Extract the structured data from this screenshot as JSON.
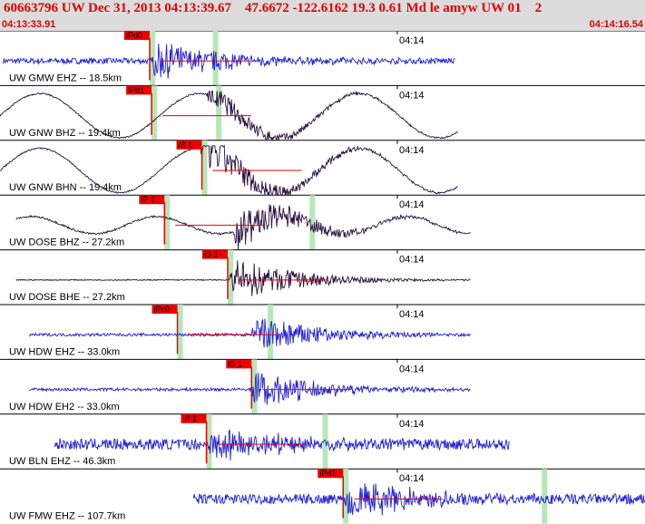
{
  "header": {
    "title": "60663796 UW Dec 31, 2013 04:13:39.67    47.6672 -122.6162 19.3 0.61 Md le amyw UW 01    2",
    "start_time": "04:13:33.91",
    "end_time": "04:14:16.54"
  },
  "colors": {
    "header_bg": "#dcdcdc",
    "header_text": "#e00000",
    "trace_blue": "#1f1fd6",
    "trace_dark": "#2a1040",
    "pick_red": "#ee0000",
    "window_green": "#b8e6b8"
  },
  "traces": [
    {
      "label": "UW GMW EHZ -- 18.5km",
      "time_label": "04:14",
      "pick": "iPd0",
      "pick_pos": 0.232,
      "s_pick_pos": 0.33,
      "start": 0.005,
      "end": 0.705,
      "color": "blue",
      "lowfreq": 0,
      "event": 0.235,
      "amp": 0.4,
      "noise": 0.12
    },
    {
      "label": "UW GNW BHZ -- 19.4km",
      "time_label": "04:14",
      "pick": "iPd1",
      "pick_pos": 0.235,
      "s_pick_pos": 0.335,
      "start": 0.0,
      "end": 0.71,
      "color": "dark",
      "lowfreq": 1,
      "event": 0.32,
      "amp": 0.25,
      "noise": 0.03
    },
    {
      "label": "UW GNW BHN -- 19.4km",
      "time_label": "04:14",
      "pick": "iS 1",
      "pick_pos": 0.313,
      "s_pick_pos": 0.313,
      "start": 0.0,
      "end": 0.71,
      "color": "dark",
      "lowfreq": 1,
      "event": 0.31,
      "amp": 0.45,
      "noise": 0.03
    },
    {
      "label": "UW DOSE BHZ -- 27.2km",
      "time_label": "04:14",
      "pick": "iP 1",
      "pick_pos": 0.255,
      "s_pick_pos": 0.48,
      "start": 0.025,
      "end": 0.73,
      "color": "dark",
      "lowfreq": 2,
      "event": 0.36,
      "amp": 0.45,
      "noise": 0.04
    },
    {
      "label": "UW DOSE BHE -- 27.2km",
      "time_label": "04:14",
      "pick": "iS 1",
      "pick_pos": 0.353,
      "s_pick_pos": 0.353,
      "start": 0.025,
      "end": 0.73,
      "color": "dark",
      "lowfreq": 0,
      "event": 0.355,
      "amp": 0.45,
      "noise": 0.02
    },
    {
      "label": "UW HDW EHZ -- 33.0km",
      "time_label": "04:14",
      "pick": "iPc0",
      "pick_pos": 0.275,
      "s_pick_pos": 0.415,
      "start": 0.045,
      "end": 0.73,
      "color": "blue",
      "lowfreq": 0,
      "event": 0.39,
      "amp": 0.4,
      "noise": 0.06
    },
    {
      "label": "UW HDW EH2 -- 33.0km",
      "time_label": "04:14",
      "pick": "iS 1",
      "pick_pos": 0.39,
      "s_pick_pos": 0.39,
      "start": 0.045,
      "end": 0.73,
      "color": "blue",
      "lowfreq": 0,
      "event": 0.39,
      "amp": 0.4,
      "noise": 0.06
    },
    {
      "label": "UW BLN EHZ -- 46.3km",
      "time_label": "04:14",
      "pick": "iP 1",
      "pick_pos": 0.32,
      "s_pick_pos": 0.5,
      "start": 0.085,
      "end": 0.79,
      "color": "blue",
      "lowfreq": 0,
      "event": 0.323,
      "amp": 0.35,
      "noise": 0.22
    },
    {
      "label": "UW FMW EHZ -- 107.7km",
      "time_label": "04:14",
      "pick": "iPd1",
      "pick_pos": 0.532,
      "s_pick_pos": 0.84,
      "start": 0.3,
      "end": 1.0,
      "color": "blue",
      "lowfreq": 0,
      "event": 0.535,
      "amp": 0.4,
      "noise": 0.2
    }
  ]
}
